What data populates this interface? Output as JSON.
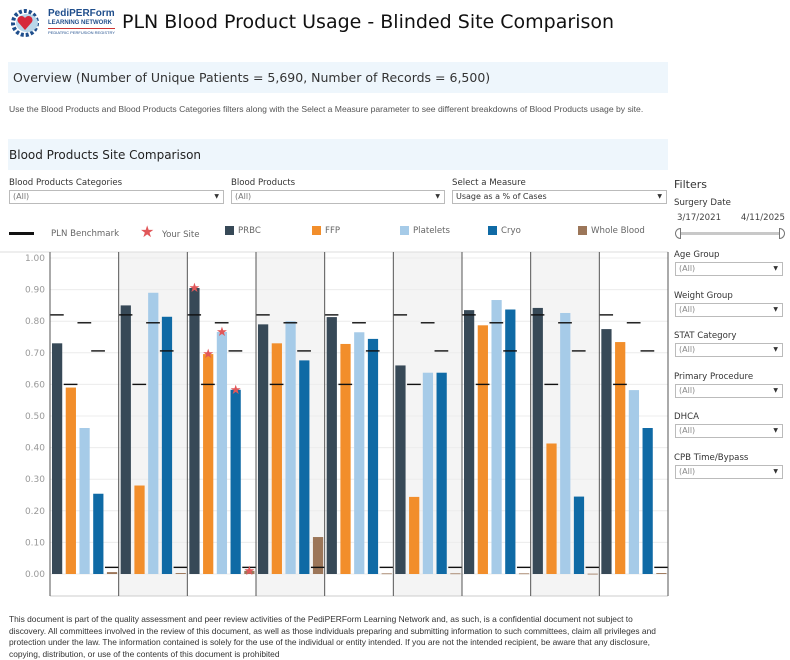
{
  "header": {
    "logo": {
      "line1": "PediPERForm",
      "line2": "LEARNING NETWORK",
      "line3": "PEDIATRIC PERFUSION REGISTRY"
    },
    "title": "PLN Blood Product Usage - Blinded Site Comparison"
  },
  "overview": "Overview (Number of Unique Patients = 5,690, Number of Records =  6,500)",
  "description": "Use the Blood Products and Blood Products Categories filters along with the Select a Measure parameter to see different breakdowns of Blood Products usage by site.",
  "section_title": "Blood Products Site Comparison",
  "controls": [
    {
      "label": "Blood Products Categories",
      "value": "(All)"
    },
    {
      "label": "Blood Products",
      "value": "(All)"
    },
    {
      "label": "Select a Measure",
      "value": "Usage as a % of Cases"
    }
  ],
  "legend": {
    "benchmark": "PLN Benchmark",
    "your_site": "Your Site"
  },
  "filters": {
    "title": "Filters",
    "surgery_date": {
      "label": "Surgery Date",
      "start": "3/17/2021",
      "end": "4/11/2025"
    },
    "dropdowns": [
      {
        "label": "Age Group",
        "value": "(All)"
      },
      {
        "label": "Weight Group",
        "value": "(All)"
      },
      {
        "label": "STAT Category",
        "value": "(All)"
      },
      {
        "label": "Primary Procedure",
        "value": "(All)"
      },
      {
        "label": "DHCA",
        "value": "(All)"
      },
      {
        "label": "CPB Time/Bypass",
        "value": "(All)"
      }
    ]
  },
  "chart_data": {
    "type": "bar",
    "ylim": [
      0,
      1
    ],
    "yticks": [
      "0.00",
      "0.10",
      "0.20",
      "0.30",
      "0.40",
      "0.50",
      "0.60",
      "0.70",
      "0.80",
      "0.90",
      "1.00"
    ],
    "grid": true,
    "legend_position": "top",
    "panel_count": 9,
    "your_site_panel": 3,
    "series": [
      {
        "name": "PRBC",
        "color": "#374957",
        "benchmark": 0.82,
        "values": [
          0.73,
          0.85,
          0.905,
          0.79,
          0.813,
          0.66,
          0.835,
          0.842,
          0.775
        ]
      },
      {
        "name": "FFP",
        "color": "#f28e2b",
        "benchmark": 0.6,
        "values": [
          0.59,
          0.28,
          0.696,
          0.73,
          0.728,
          0.244,
          0.787,
          0.413,
          0.734
        ]
      },
      {
        "name": "Platelets",
        "color": "#a6cbe8",
        "benchmark": 0.795,
        "values": [
          0.462,
          0.89,
          0.766,
          0.8,
          0.765,
          0.637,
          0.867,
          0.826,
          0.582
        ]
      },
      {
        "name": "Cryo",
        "color": "#0f6aa5",
        "benchmark": 0.706,
        "values": [
          0.254,
          0.814,
          0.583,
          0.676,
          0.744,
          0.637,
          0.837,
          0.245,
          0.462
        ]
      },
      {
        "name": "Whole Blood",
        "color": "#9c7659",
        "benchmark": 0.021,
        "values": [
          0.006,
          0.003,
          0.01,
          0.117,
          0.002,
          0.002,
          0.002,
          0.001,
          0.003
        ]
      }
    ],
    "star_color": "#e15759",
    "panel_colors": [
      "#ffffff",
      "#f4f4f4"
    ]
  },
  "footer": "This document is part of the quality assessment and peer review activities of the PediPERForm Learning Network and, as such, is a confidential document not subject to discovery. All committees involved in the review of this document, as well as those individuals preparing and submitting information to such committees, claim all privileges and protection under the law. The information contained is solely for the use of the individual or entity intended. If you are not the intended recipient, be aware that any disclosure, copying, distribution, or use of the contents of this document is prohibited"
}
